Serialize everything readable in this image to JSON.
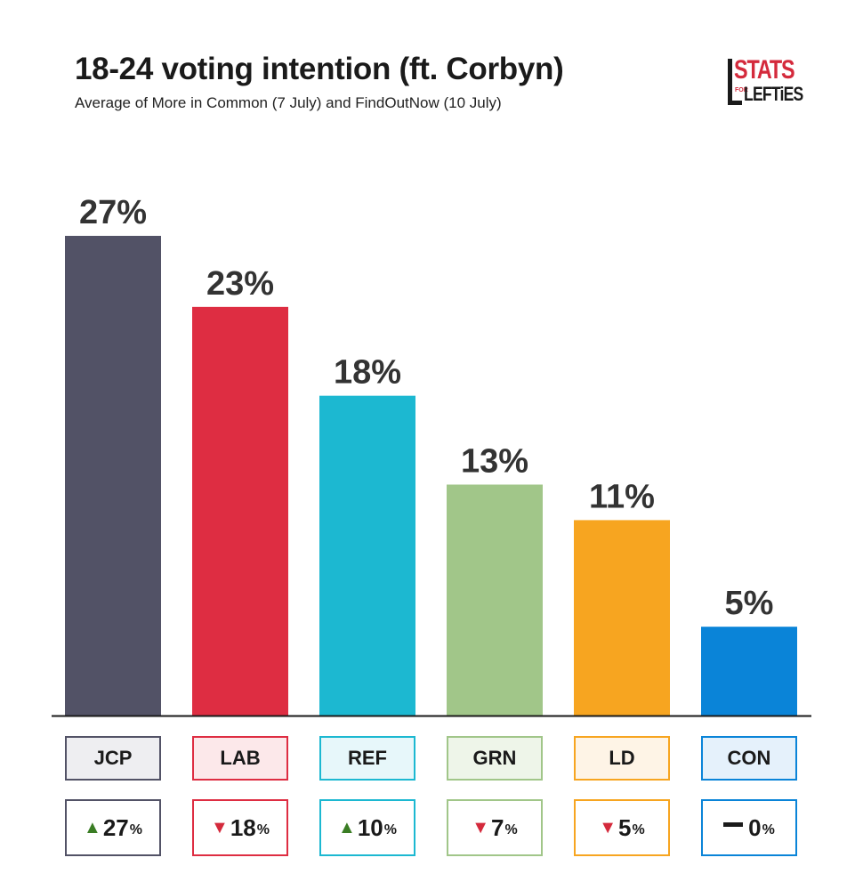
{
  "title": "18-24 voting intention (ft. Corbyn)",
  "subtitle": "Average of More in Common (7 July) and FindOutNow (10 July)",
  "logo": {
    "stats": "STATS",
    "for": "FOR",
    "lefties": "LEFTiES"
  },
  "chart_data": {
    "type": "bar",
    "categories": [
      "JCP",
      "LAB",
      "REF",
      "GRN",
      "LD",
      "CON"
    ],
    "values": [
      27,
      23,
      18,
      13,
      11,
      5
    ],
    "value_labels": [
      "27%",
      "23%",
      "18%",
      "13%",
      "11%",
      "5%"
    ],
    "ylim": [
      0,
      27
    ],
    "colors": [
      "#525266",
      "#de2d42",
      "#1cb8d1",
      "#a1c689",
      "#f7a520",
      "#0a84d8"
    ],
    "label_backgrounds": [
      "#eeeef1",
      "#fce8ea",
      "#e7f7fa",
      "#eef5e9",
      "#fef4e6",
      "#e5f1fb"
    ],
    "changes": [
      {
        "direction": "up",
        "value": "27",
        "unit": "%"
      },
      {
        "direction": "down",
        "value": "18",
        "unit": "%"
      },
      {
        "direction": "up",
        "value": "10",
        "unit": "%"
      },
      {
        "direction": "down",
        "value": "7",
        "unit": "%"
      },
      {
        "direction": "down",
        "value": "5",
        "unit": "%"
      },
      {
        "direction": "none",
        "value": "0",
        "unit": "%"
      }
    ]
  }
}
